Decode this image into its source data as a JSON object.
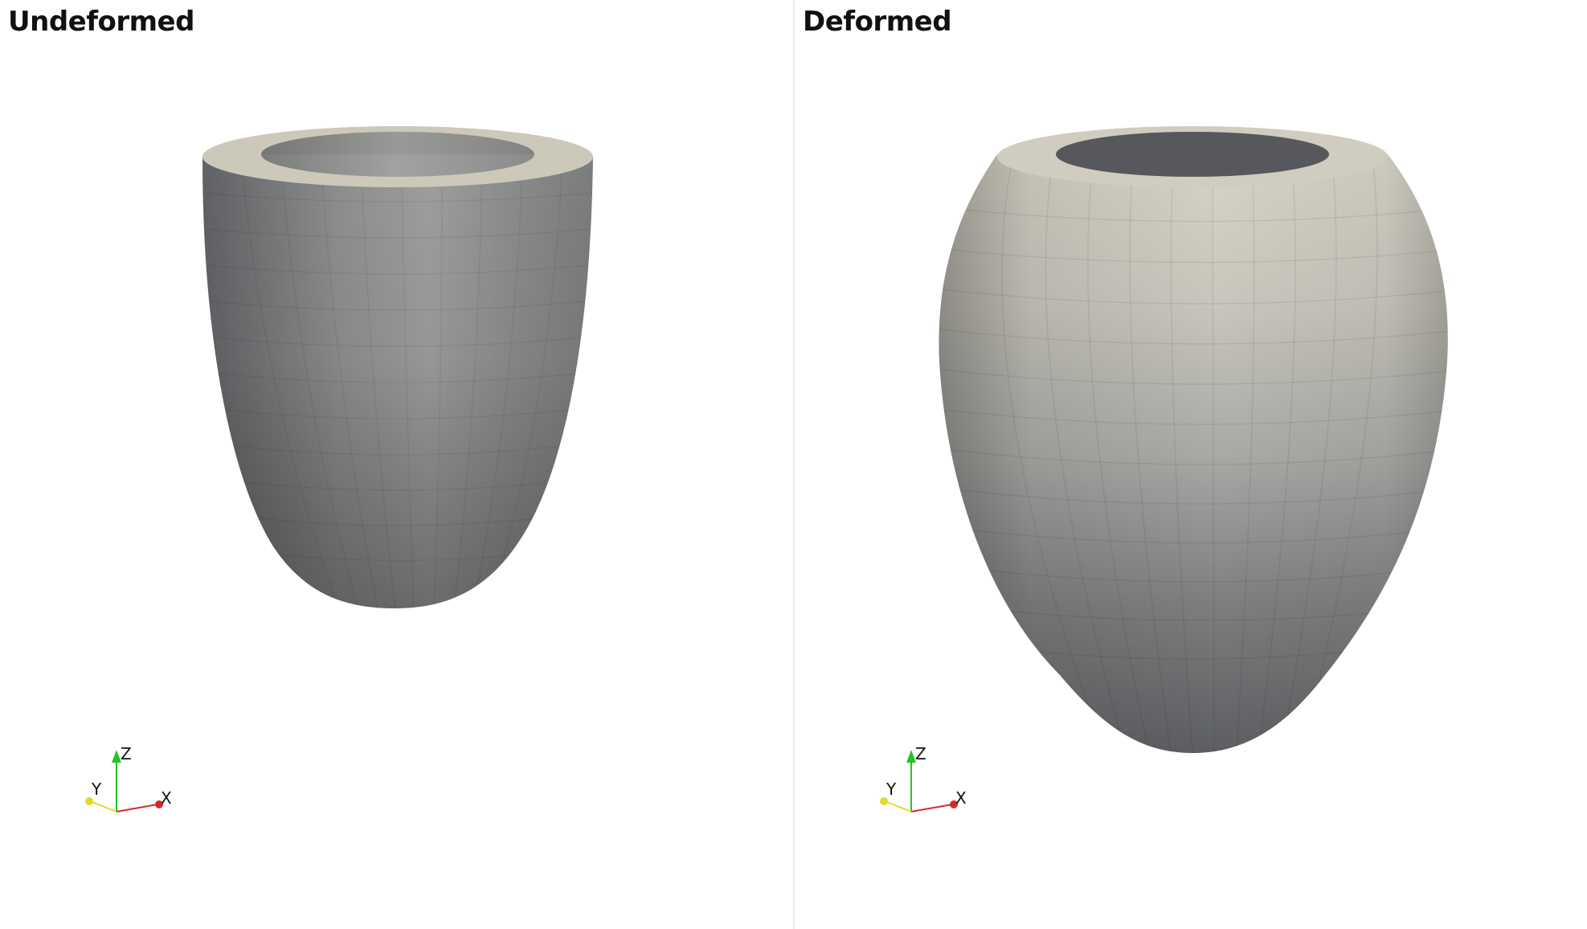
{
  "viewports": {
    "left": {
      "title": "Undeformed"
    },
    "right": {
      "title": "Deformed"
    }
  },
  "axes": {
    "z": "Z",
    "y": "Y",
    "x": "X"
  },
  "colors": {
    "background": "#ffffff",
    "surface_dark": "#5b5d60",
    "surface_light": "#a4a4a2",
    "surface_light_deformed": "#d4d1c5",
    "rim": "#ccc9bb",
    "axis_x": "#d42a2a",
    "axis_y": "#e0d930",
    "axis_z": "#22c422"
  }
}
